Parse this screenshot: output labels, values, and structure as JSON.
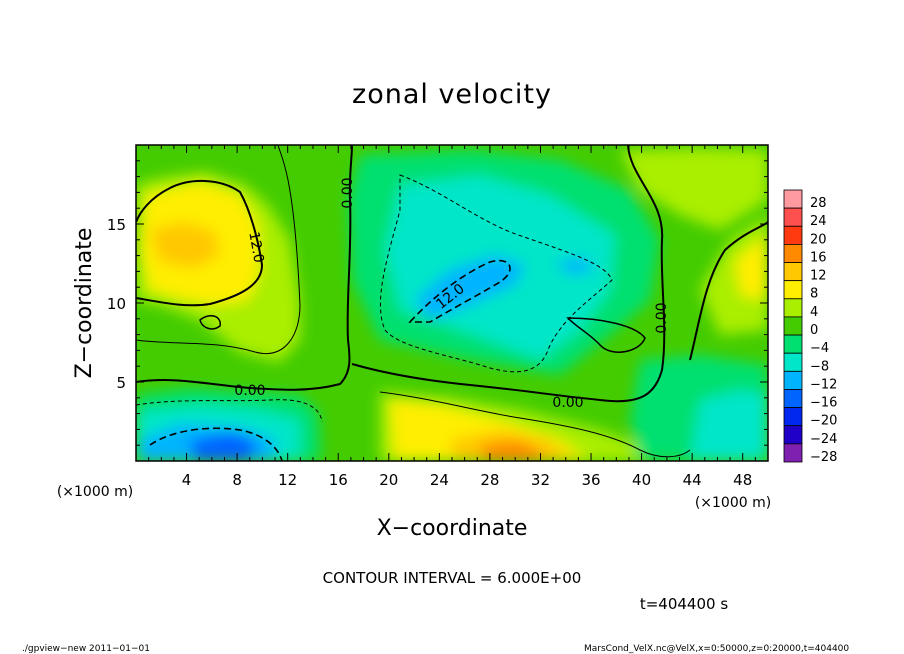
{
  "chart_data": {
    "type": "heatmap",
    "title": "zonal velocity",
    "xlabel": "X−coordinate",
    "ylabel": "Z−coordinate",
    "x_unit": "(×1000 m)",
    "y_unit": "(×1000 m)",
    "xlim": [
      0,
      50
    ],
    "ylim": [
      0,
      20
    ],
    "x_ticks": [
      4,
      8,
      12,
      16,
      20,
      24,
      28,
      32,
      36,
      40,
      44,
      48
    ],
    "x_tick_labels": [
      "4",
      "8",
      "12",
      "16",
      "20",
      "24",
      "28",
      "32",
      "36",
      "40",
      "44",
      "48"
    ],
    "y_ticks": [
      5,
      10,
      15
    ],
    "y_tick_labels": [
      "5",
      "10",
      "15"
    ],
    "colorbar": {
      "levels": [
        28,
        24,
        20,
        16,
        12,
        8,
        4,
        0,
        -4,
        -8,
        -12,
        -16,
        -20,
        -24,
        -28
      ],
      "labels": [
        "28",
        "24",
        "20",
        "16",
        "12",
        "8",
        "4",
        "0",
        "−4",
        "−8",
        "−12",
        "−16",
        "−20",
        "−24",
        "−28"
      ],
      "colors": [
        "#ff9aa0",
        "#ff5050",
        "#ff3a10",
        "#ff8a00",
        "#ffc800",
        "#ffee00",
        "#aaee00",
        "#44cc00",
        "#00e070",
        "#00e6c8",
        "#00b4ff",
        "#0064ff",
        "#0028ee",
        "#2000c8",
        "#8020b0"
      ]
    },
    "features": [
      {
        "name": "positive maximum upper-left",
        "x": 6,
        "z": 13.5,
        "value": 14
      },
      {
        "name": "negative minimum center",
        "x": 26,
        "z": 11.5,
        "value": -13
      },
      {
        "name": "negative minimum lower-left",
        "x": 7,
        "z": 1,
        "value": -16
      },
      {
        "name": "positive maximum lower-center",
        "x": 30,
        "z": 1,
        "value": 14
      },
      {
        "name": "positive maximum right edge",
        "x": 49.5,
        "z": 12.5,
        "value": 12
      }
    ],
    "contour_labels": [
      "12.0",
      "0.00",
      "0.00",
      "12.0",
      "0.00",
      "0.00"
    ],
    "grid": false,
    "legend": "colorbar right"
  },
  "contour_interval": "CONTOUR INTERVAL = 6.000E+00",
  "time_label": "t=404400 s",
  "footer_left": "./gpview−new  2011−01−01",
  "footer_right": "MarsCond_VelX.nc@VelX,x=0:50000,z=0:20000,t=404400"
}
